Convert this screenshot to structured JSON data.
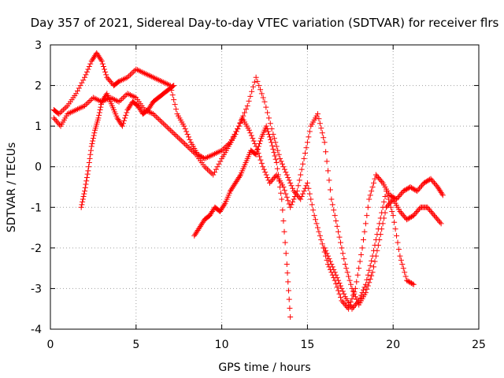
{
  "chart_data": {
    "type": "scatter",
    "title": "Day 357 of 2021, Sidereal Day-to-day VTEC variation (SDTVAR) for receiver flrs",
    "xlabel": "GPS time / hours",
    "ylabel": "SDTVAR / TECUs",
    "xlim": [
      0,
      25
    ],
    "ylim": [
      -4,
      3
    ],
    "xticks": [
      "0",
      "5",
      "10",
      "15",
      "20",
      "25"
    ],
    "yticks": [
      "-4",
      "-3",
      "-2",
      "-1",
      "0",
      "1",
      "2",
      "3"
    ],
    "grid": true,
    "marker": "+",
    "color": "#ff0000",
    "series": [
      {
        "x": [
          0.2,
          0.5,
          1.0,
          1.5,
          2.0,
          2.4,
          2.7,
          3.0,
          3.3,
          3.7,
          4.0,
          4.5,
          5.0,
          5.5,
          6.0,
          6.5,
          7.0,
          7.4,
          7.8,
          8.2,
          8.6,
          9.0,
          9.5,
          10.0,
          10.5,
          11.0,
          11.5,
          12.0,
          12.5,
          13.0,
          13.4,
          13.8,
          14.2,
          14.6,
          15.0,
          15.4,
          15.8,
          16.2,
          16.6,
          17.0,
          17.4,
          17.8,
          18.2,
          18.6,
          19.0,
          19.4,
          19.8,
          20.2,
          20.6,
          21.0,
          21.4,
          21.8,
          22.2,
          22.6,
          22.9
        ],
        "y": [
          1.4,
          1.3,
          1.5,
          1.8,
          2.2,
          2.6,
          2.8,
          2.6,
          2.2,
          2.0,
          2.1,
          2.2,
          2.4,
          2.3,
          2.2,
          2.1,
          2.0,
          1.3,
          1.0,
          0.6,
          0.3,
          0.2,
          0.3,
          0.4,
          0.6,
          1.0,
          1.5,
          2.2,
          1.6,
          0.8,
          0.2,
          -0.2,
          -0.6,
          -0.8,
          -0.4,
          -1.2,
          -1.8,
          -2.4,
          -2.8,
          -3.3,
          -3.5,
          -3.0,
          -2.0,
          -0.8,
          -0.2,
          -0.4,
          -0.7,
          -0.8,
          -0.6,
          -0.5,
          -0.6,
          -0.4,
          -0.3,
          -0.5,
          -0.7
        ]
      },
      {
        "x": [
          0.2,
          0.6,
          1.0,
          1.5,
          2.0,
          2.5,
          3.0,
          3.5,
          4.0,
          4.5,
          5.0,
          5.5,
          6.0,
          6.5,
          7.0,
          7.5,
          8.0,
          8.5,
          9.0,
          9.5,
          10.0,
          10.4,
          10.8,
          11.2,
          11.6,
          12.0,
          12.4,
          12.8,
          13.2,
          13.6,
          14.0,
          14.4,
          14.8,
          15.2,
          15.6,
          16.0,
          16.4,
          16.8,
          17.2,
          17.6,
          18.0,
          18.4,
          18.8,
          19.2,
          19.6,
          20.0,
          20.4,
          20.8,
          21.2,
          21.6,
          22.0,
          22.4,
          22.8
        ],
        "y": [
          1.2,
          1.0,
          1.3,
          1.4,
          1.5,
          1.7,
          1.6,
          1.7,
          1.6,
          1.8,
          1.7,
          1.4,
          1.3,
          1.1,
          0.9,
          0.7,
          0.5,
          0.3,
          0.0,
          -0.2,
          0.2,
          0.5,
          0.8,
          1.2,
          0.9,
          0.5,
          0.0,
          -0.4,
          -0.2,
          -0.5,
          -1.0,
          -0.6,
          0.2,
          1.0,
          1.3,
          0.6,
          -0.8,
          -1.6,
          -2.4,
          -3.0,
          -3.4,
          -3.1,
          -2.6,
          -1.8,
          -1.0,
          -0.8,
          -1.1,
          -1.3,
          -1.2,
          -1.0,
          -1.0,
          -1.2,
          -1.4
        ]
      },
      {
        "x": [
          1.8,
          2.0,
          2.2,
          2.4,
          2.6,
          2.8,
          3.0,
          3.3,
          3.6,
          3.9,
          4.2,
          4.5,
          4.8,
          5.1,
          5.4,
          5.7,
          6.0,
          6.3,
          6.6,
          6.9,
          7.2
        ],
        "y": [
          -1.0,
          -0.6,
          -0.1,
          0.5,
          0.9,
          1.2,
          1.6,
          1.8,
          1.5,
          1.2,
          1.0,
          1.4,
          1.6,
          1.5,
          1.3,
          1.4,
          1.6,
          1.7,
          1.8,
          1.9,
          2.0
        ]
      },
      {
        "x": [
          8.4,
          8.7,
          9.0,
          9.3,
          9.6,
          9.9,
          10.2,
          10.5,
          10.8,
          11.1,
          11.4,
          11.7,
          12.0,
          12.3,
          12.6,
          12.9,
          13.2,
          13.5,
          13.8,
          14.0
        ],
        "y": [
          -1.7,
          -1.5,
          -1.3,
          -1.2,
          -1.0,
          -1.1,
          -0.9,
          -0.6,
          -0.4,
          -0.2,
          0.1,
          0.4,
          0.3,
          0.7,
          1.0,
          0.6,
          0.1,
          -0.8,
          -2.4,
          -3.7
        ]
      },
      {
        "x": [
          16.0,
          16.4,
          16.8,
          17.2,
          17.6,
          18.0,
          18.4,
          18.8,
          19.2,
          19.6,
          20.0,
          20.4,
          20.8,
          21.2
        ],
        "y": [
          -2.0,
          -2.4,
          -2.8,
          -3.2,
          -3.5,
          -3.3,
          -2.9,
          -2.2,
          -1.4,
          -0.6,
          -1.2,
          -2.2,
          -2.8,
          -2.9
        ]
      }
    ]
  }
}
